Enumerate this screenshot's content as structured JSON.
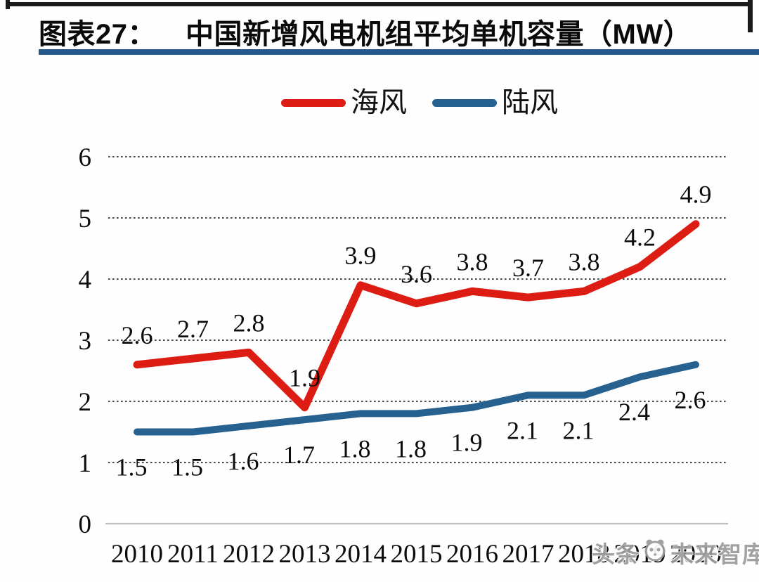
{
  "header": {
    "figure_label": "图表27：",
    "title": "中国新增风电机组平均单机容量（MW）"
  },
  "watermark": {
    "prefix": "头条",
    "name": "未来智库",
    "logo": "panda-logo"
  },
  "colors": {
    "offshore_red": "#dd1d13",
    "onshore_blue": "#27618f",
    "divider_blue": "#24578a",
    "gridline": "#2f2f2f",
    "baseline": "#bfbfbf",
    "watermark_gray": "#9c9c9c"
  },
  "chart_data": {
    "type": "line",
    "title": "中国新增风电机组平均单机容量（MW）",
    "categories": [
      "2010",
      "2011",
      "2012",
      "2013",
      "2014",
      "2015",
      "2016",
      "2017",
      "2018",
      "2019",
      "2020"
    ],
    "series": [
      {
        "name": "海风",
        "color": "#dd1d13",
        "values": [
          2.6,
          2.7,
          2.8,
          1.9,
          3.9,
          3.6,
          3.8,
          3.7,
          3.8,
          4.2,
          4.9
        ]
      },
      {
        "name": "陆风",
        "color": "#27618f",
        "values": [
          1.5,
          1.5,
          1.6,
          1.7,
          1.8,
          1.8,
          1.9,
          2.1,
          2.1,
          2.4,
          2.6
        ]
      }
    ],
    "xlabel": "",
    "ylabel": "",
    "ylim": [
      0,
      6
    ],
    "yticks": [
      0,
      1,
      2,
      3,
      4,
      5,
      6
    ],
    "grid": "horizontal-dotted",
    "legend_position": "top-center",
    "data_labels": true
  }
}
